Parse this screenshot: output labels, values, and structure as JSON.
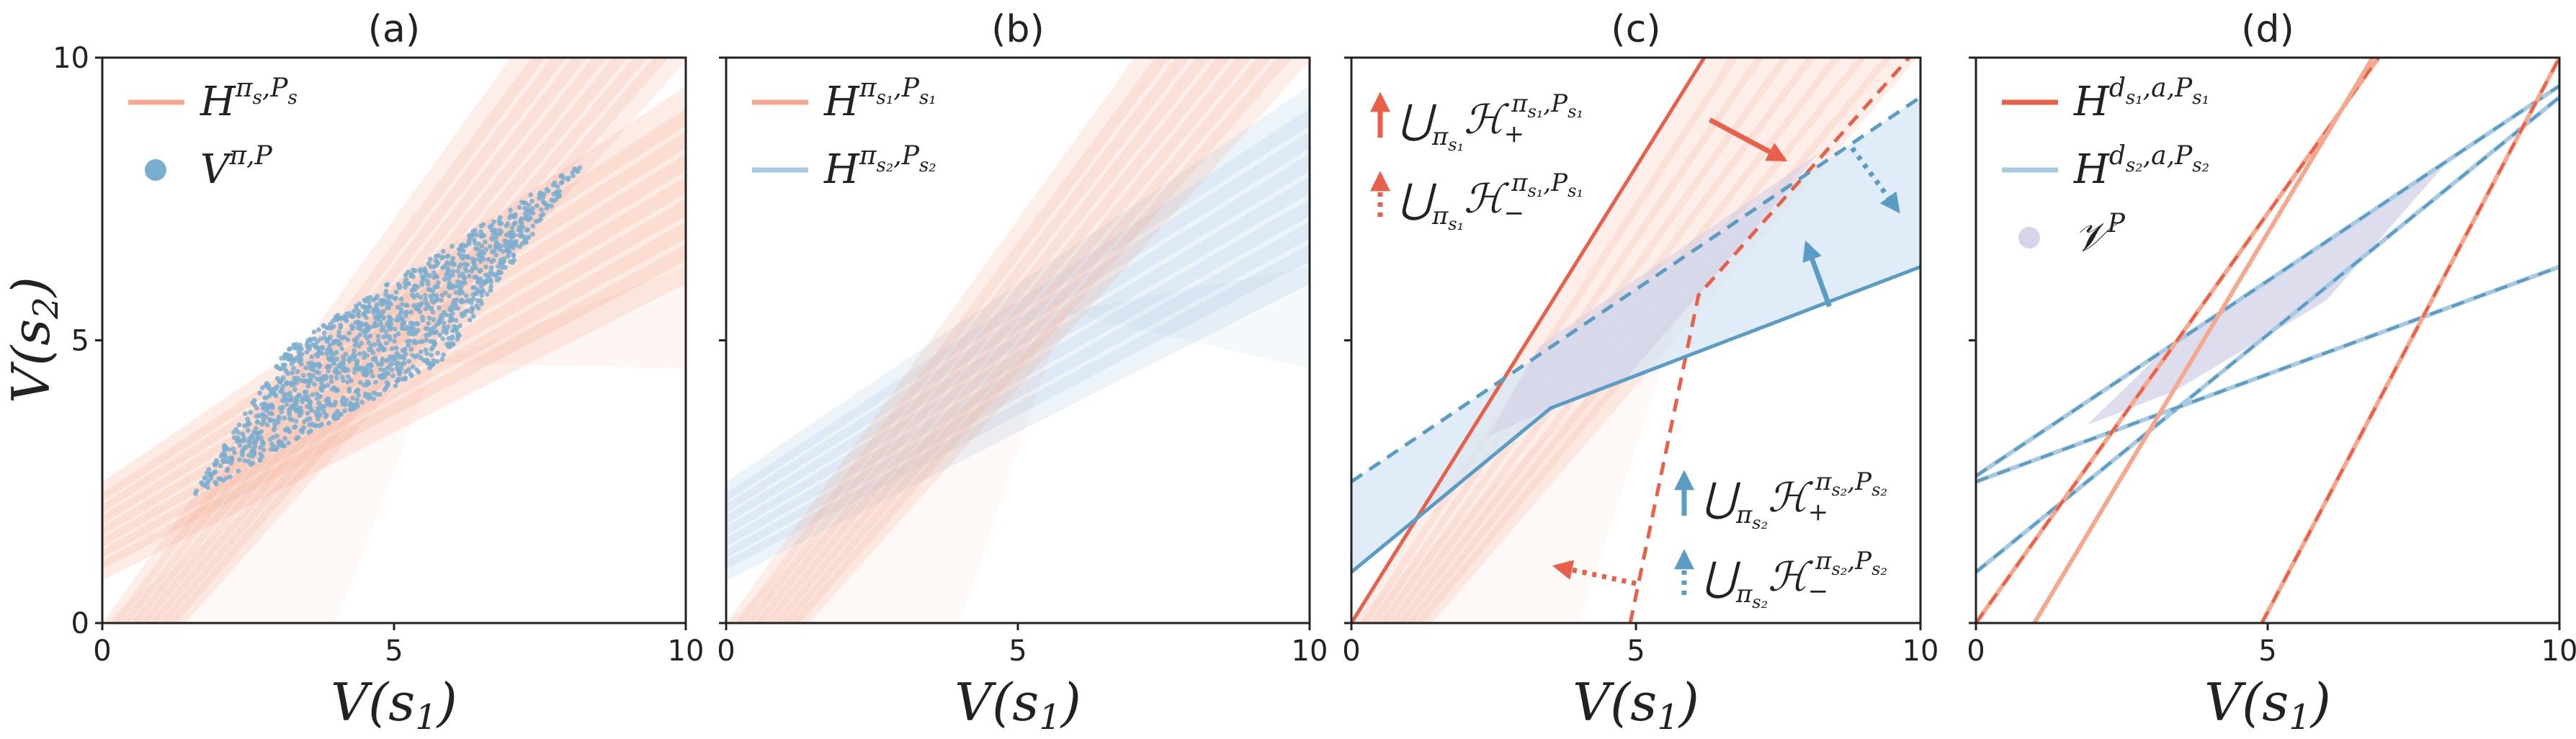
{
  "colors": {
    "red": "#e8604a",
    "red_light": "#f4a98f",
    "blue": "#5b9cc5",
    "blue_light": "#a8c9e2",
    "blue_fill": "#d6e6f4",
    "purple_fill": "#d5d4ea",
    "scatter": "#7aaed0"
  },
  "axes": {
    "xlabel": "V(s",
    "xlabel_sub": "1",
    "xlabel_close": ")",
    "ylabel": "V(s",
    "ylabel_sub": "2",
    "ylabel_close": ")"
  },
  "panels": [
    {
      "title": "(a)",
      "legend": [
        {
          "kind": "line",
          "color": "#f4a98f",
          "main": "H",
          "sup": "π",
          "sup_sub": "s",
          "sup_rest": ",P",
          "sup_rest_sub": "s"
        },
        {
          "kind": "dot",
          "color": "#7aaed0",
          "main": "V",
          "sup": "π,P",
          "sup_sub": "",
          "sup_rest": "",
          "sup_rest_sub": ""
        }
      ]
    },
    {
      "title": "(b)",
      "legend": [
        {
          "kind": "line",
          "color": "#f4a98f",
          "main": "H",
          "sup": "π",
          "sup_sub": "s₁",
          "sup_rest": ",P",
          "sup_rest_sub": "s₁"
        },
        {
          "kind": "line",
          "color": "#a8c9e2",
          "main": "H",
          "sup": "π",
          "sup_sub": "s₂",
          "sup_rest": ",P",
          "sup_rest_sub": "s₂"
        }
      ]
    },
    {
      "title": "(c)",
      "legend_top": [
        {
          "kind": "arrow",
          "style": "solid",
          "color": "#e8604a",
          "text": "⋃",
          "sub": "π",
          "subsub": "s₁",
          "main": "ℋ",
          "mainsub": "+",
          "sup": "π",
          "supsub": "s₁",
          "suprest": ",P",
          "suprestsub": "s₁"
        },
        {
          "kind": "arrow",
          "style": "dotted",
          "color": "#e8604a",
          "text": "⋃",
          "sub": "π",
          "subsub": "s₁",
          "main": "ℋ",
          "mainsub": "−",
          "sup": "π",
          "supsub": "s₁",
          "suprest": ",P",
          "suprestsub": "s₁"
        }
      ],
      "legend_bottom": [
        {
          "kind": "arrow",
          "style": "solid",
          "color": "#5b9cc5",
          "text": "⋃",
          "sub": "π",
          "subsub": "s₂",
          "main": "ℋ",
          "mainsub": "+",
          "sup": "π",
          "supsub": "s₂",
          "suprest": ",P",
          "suprestsub": "s₂"
        },
        {
          "kind": "arrow",
          "style": "dotted",
          "color": "#5b9cc5",
          "text": "⋃",
          "sub": "π",
          "subsub": "s₂",
          "main": "ℋ",
          "mainsub": "−",
          "sup": "π",
          "supsub": "s₂",
          "suprest": ",P",
          "suprestsub": "s₂"
        }
      ]
    },
    {
      "title": "(d)",
      "legend": [
        {
          "kind": "line",
          "color": "#e8604a",
          "main": "H",
          "sup": "d",
          "sup_sub": "s₁",
          "sup_rest": ",a,P",
          "sup_rest_sub": "s₁"
        },
        {
          "kind": "line",
          "color": "#a8c9e2",
          "main": "H",
          "sup": "d",
          "sup_sub": "s₂",
          "sup_rest": ",a,P",
          "sup_rest_sub": "s₂"
        },
        {
          "kind": "dot",
          "color": "#d5d4ea",
          "main": "𝒱",
          "sup": "P",
          "sup_sub": "",
          "sup_rest": "",
          "sup_rest_sub": ""
        }
      ]
    }
  ],
  "chart_data": [
    {
      "type": "scatter",
      "title": "(a)",
      "xlabel": "V(s1)",
      "ylabel": "V(s2)",
      "xlim": [
        0,
        10
      ],
      "ylim": [
        0,
        10
      ],
      "xticks": [
        0,
        5,
        10
      ],
      "yticks": [
        0,
        5,
        10
      ],
      "series": [
        {
          "name": "H^{π_s,P_s}",
          "kind": "half-plane bands",
          "lines": [
            {
              "from": [
                0,
                2.5
              ],
              "to": [
                10,
                9.5
              ]
            },
            {
              "from": [
                0,
                0.9
              ],
              "to": [
                10,
                6.3
              ]
            },
            {
              "from": [
                0,
                0
              ],
              "to": [
                7,
                10
              ]
            },
            {
              "from": [
                1.3,
                0
              ],
              "to": [
                9.8,
                10
              ]
            }
          ]
        },
        {
          "name": "V^{π,P}",
          "kind": "point cloud",
          "vertices": [
            [
              1.5,
              2.2
            ],
            [
              3.2,
              4.9
            ],
            [
              8.3,
              8.2
            ],
            [
              5.8,
              4.6
            ]
          ]
        }
      ]
    },
    {
      "type": "area",
      "title": "(b)",
      "xlabel": "V(s1)",
      "ylabel": "",
      "xlim": [
        0,
        10
      ],
      "ylim": [
        0,
        10
      ],
      "xticks": [
        0,
        5,
        10
      ],
      "yticks": [
        0,
        5,
        10
      ],
      "series": [
        {
          "name": "H^{π_s1,P_s1}",
          "lines": [
            {
              "from": [
                0,
                0
              ],
              "to": [
                7,
                10
              ]
            },
            {
              "from": [
                1.3,
                0
              ],
              "to": [
                9.8,
                10
              ]
            }
          ]
        },
        {
          "name": "H^{π_s2,P_s2}",
          "lines": [
            {
              "from": [
                0,
                2.5
              ],
              "to": [
                10,
                9.5
              ]
            },
            {
              "from": [
                0,
                0.9
              ],
              "to": [
                10,
                6.3
              ]
            }
          ]
        }
      ]
    },
    {
      "type": "line",
      "title": "(c)",
      "xlabel": "V(s1)",
      "ylabel": "",
      "xlim": [
        0,
        10
      ],
      "ylim": [
        0,
        10
      ],
      "xticks": [
        0,
        5,
        10
      ],
      "yticks": [
        0,
        5,
        10
      ],
      "series": [
        {
          "name": "⋃ H+ (s1)",
          "style": "solid",
          "color": "red",
          "x": [
            0,
            6.2
          ],
          "y": [
            0,
            10
          ]
        },
        {
          "name": "⋃ H− (s1)",
          "style": "dashed",
          "color": "red",
          "x": [
            4.9,
            6.1,
            9.8
          ],
          "y": [
            0,
            5.8,
            10
          ]
        },
        {
          "name": "⋃ H+ (s2)",
          "style": "solid",
          "color": "blue",
          "x": [
            0,
            3.5,
            10
          ],
          "y": [
            0.9,
            3.8,
            6.3
          ]
        },
        {
          "name": "⋃ H− (s2)",
          "style": "dashed",
          "color": "blue",
          "x": [
            0,
            10
          ],
          "y": [
            2.5,
            9.3
          ]
        }
      ]
    },
    {
      "type": "line",
      "title": "(d)",
      "xlabel": "V(s1)",
      "ylabel": "",
      "xlim": [
        0,
        10
      ],
      "ylim": [
        0,
        10
      ],
      "xticks": [
        0,
        5,
        10
      ],
      "yticks": [
        0,
        5,
        10
      ],
      "series": [
        {
          "name": "H^{d_s1,a,P_s1}",
          "lines": [
            {
              "from": [
                0,
                0
              ],
              "to": [
                6.9,
                10
              ],
              "style": "dashed"
            },
            {
              "from": [
                1.0,
                0
              ],
              "to": [
                6.8,
                10
              ],
              "style": "solid"
            },
            {
              "from": [
                4.9,
                0
              ],
              "to": [
                10,
                10
              ],
              "style": "dashed"
            }
          ]
        },
        {
          "name": "H^{d_s2,a,P_s2}",
          "lines": [
            {
              "from": [
                0,
                2.6
              ],
              "to": [
                10,
                9.5
              ],
              "style": "dashed"
            },
            {
              "from": [
                0,
                0.9
              ],
              "to": [
                10,
                9.3
              ],
              "style": "dashed"
            },
            {
              "from": [
                0,
                2.5
              ],
              "to": [
                10,
                6.3
              ],
              "style": "dashed"
            }
          ]
        },
        {
          "name": "𝒱^P",
          "kind": "polygon",
          "vertices": [
            [
              1.9,
              3.5
            ],
            [
              3.3,
              4.9
            ],
            [
              8.2,
              8.3
            ],
            [
              6.0,
              5.7
            ],
            [
              3.4,
              4.1
            ]
          ]
        }
      ]
    }
  ]
}
